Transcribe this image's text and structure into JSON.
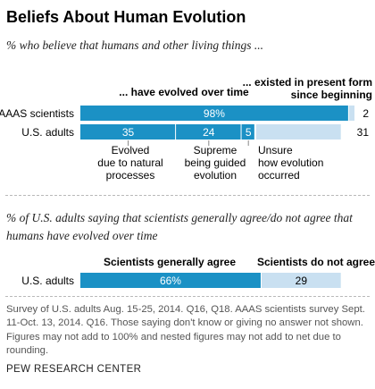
{
  "title": "Beliefs About Human Evolution",
  "subtitle1": "% who believe that humans and other living things ...",
  "subtitle2": "% of U.S. adults saying that scientists generally agree/do not agree that humans have evolved over time",
  "footnote": "Survey of U.S. adults Aug. 15-25, 2014. Q16, Q18. AAAS scientists survey Sept. 11-Oct. 13, 2014. Q16. Those saying don't know or giving no answer not shown. Figures may not add to 100% and nested figures may not add to net due to rounding.",
  "source": "PEW RESEARCH CENTER",
  "colors": {
    "dark": "#1b91c5",
    "light": "#c9e0f1",
    "text": "#000000"
  },
  "chart_data": [
    {
      "type": "bar",
      "orientation": "horizontal",
      "stacked": true,
      "categories": [
        "AAAS scientists",
        "U.S. adults"
      ],
      "header_labels": [
        "... have evolved over time",
        "... existed in present form since beginning"
      ],
      "series": [
        {
          "name": "... have evolved over time",
          "values": [
            98,
            65
          ],
          "value_labels": [
            "98%",
            ""
          ]
        },
        {
          "name": "... existed in present form since beginning",
          "values": [
            2,
            31
          ],
          "value_labels": [
            "2",
            "31"
          ]
        }
      ],
      "nested": {
        "category": "U.S. adults",
        "segments": [
          {
            "label": "Evolved due to natural processes",
            "value": 35
          },
          {
            "label": "Supreme being guided evolution",
            "value": 24
          },
          {
            "label": "Unsure how evolution occurred",
            "value": 5
          }
        ]
      }
    },
    {
      "type": "bar",
      "orientation": "horizontal",
      "stacked": true,
      "categories": [
        "U.S. adults"
      ],
      "series": [
        {
          "name": "Scientists generally agree",
          "values": [
            66
          ],
          "value_labels": [
            "66%"
          ]
        },
        {
          "name": "Scientists do not agree",
          "values": [
            29
          ],
          "value_labels": [
            "29"
          ]
        }
      ]
    }
  ]
}
